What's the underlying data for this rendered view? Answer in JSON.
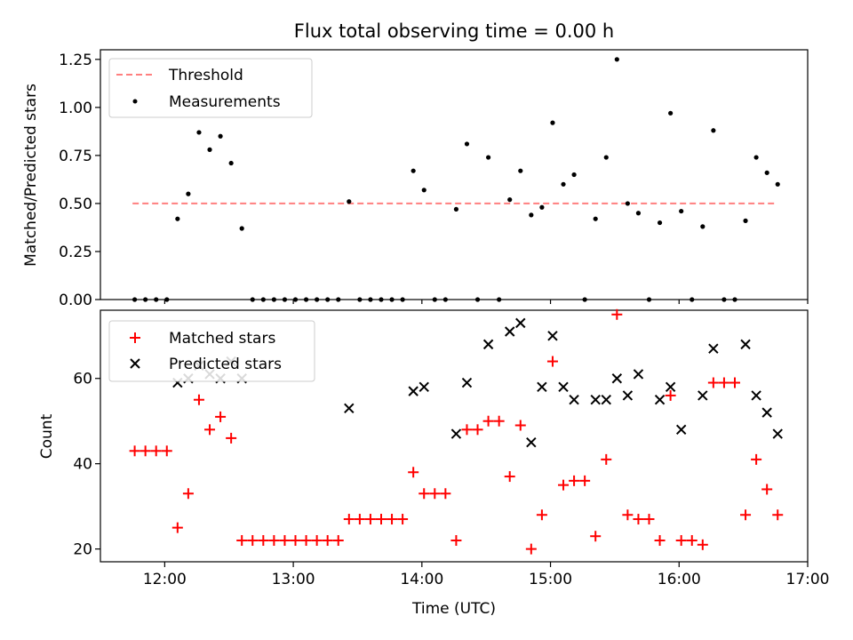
{
  "figure": {
    "title": "Flux total observing time = 0.00 h"
  },
  "chart_data": [
    {
      "type": "scatter",
      "panel": "top",
      "ylabel": "Matched/Predicted stars",
      "xlabel": "",
      "ylim": [
        0,
        1.3
      ],
      "xlim": [
        "11:30",
        "17:00"
      ],
      "yticks": [
        0.0,
        0.25,
        0.5,
        0.75,
        1.0,
        1.25
      ],
      "ytick_labels": [
        "0.00",
        "0.25",
        "0.50",
        "0.75",
        "1.00",
        "1.25"
      ],
      "legend_location": "upper-left",
      "legend": [
        "Threshold",
        "Measurements"
      ],
      "threshold": {
        "name": "Threshold",
        "y": 0.5,
        "x_start": "11:45",
        "x_end": "16:45",
        "color": "#ff7f7f",
        "style": "dashed"
      },
      "series": [
        {
          "name": "Measurements",
          "color": "#000000",
          "x": [
            "11:46",
            "11:51",
            "11:56",
            "12:01",
            "12:06",
            "12:11",
            "12:16",
            "12:21",
            "12:26",
            "12:31",
            "12:36",
            "12:41",
            "12:46",
            "12:51",
            "12:56",
            "13:01",
            "13:06",
            "13:11",
            "13:16",
            "13:21",
            "13:26",
            "13:31",
            "13:36",
            "13:41",
            "13:46",
            "13:51",
            "13:56",
            "14:01",
            "14:06",
            "14:11",
            "14:16",
            "14:21",
            "14:26",
            "14:31",
            "14:36",
            "14:41",
            "14:46",
            "14:51",
            "14:56",
            "15:01",
            "15:06",
            "15:11",
            "15:16",
            "15:21",
            "15:26",
            "15:31",
            "15:36",
            "15:41",
            "15:46",
            "15:51",
            "15:56",
            "16:01",
            "16:06",
            "16:11",
            "16:16",
            "16:21",
            "16:26",
            "16:31",
            "16:36",
            "16:41",
            "16:46"
          ],
          "y": [
            0.0,
            0.0,
            0.0,
            0.0,
            0.42,
            0.55,
            0.87,
            0.78,
            0.85,
            0.71,
            0.37,
            0.0,
            0.0,
            0.0,
            0.0,
            0.0,
            0.0,
            0.0,
            0.0,
            0.0,
            0.51,
            0.0,
            0.0,
            0.0,
            0.0,
            0.0,
            0.67,
            0.57,
            0.0,
            0.0,
            0.47,
            0.81,
            0.0,
            0.74,
            0.0,
            0.52,
            0.67,
            0.44,
            0.48,
            0.92,
            0.6,
            0.65,
            0.0,
            0.42,
            0.74,
            1.25,
            0.5,
            0.45,
            0.0,
            0.4,
            0.97,
            0.46,
            0.0,
            0.38,
            0.88,
            0.0,
            0.0,
            0.41,
            0.74,
            0.66,
            0.6
          ]
        }
      ]
    },
    {
      "type": "scatter",
      "panel": "bottom",
      "ylabel": "Count",
      "xlabel": "Time (UTC)",
      "ylim": [
        17,
        76
      ],
      "xlim": [
        "11:30",
        "17:00"
      ],
      "yticks": [
        20,
        40,
        60
      ],
      "ytick_labels": [
        "20",
        "40",
        "60"
      ],
      "xtick_labels": [
        "12:00",
        "13:00",
        "14:00",
        "15:00",
        "16:00",
        "17:00"
      ],
      "legend_location": "upper-left",
      "legend": [
        "Matched stars",
        "Predicted stars"
      ],
      "series": [
        {
          "name": "Matched stars",
          "marker": "plus",
          "color": "#ff0000",
          "x": [
            "11:46",
            "11:51",
            "11:56",
            "12:01",
            "12:06",
            "12:11",
            "12:16",
            "12:21",
            "12:26",
            "12:31",
            "12:36",
            "12:41",
            "12:46",
            "12:51",
            "12:56",
            "13:01",
            "13:06",
            "13:11",
            "13:16",
            "13:21",
            "13:26",
            "13:31",
            "13:36",
            "13:41",
            "13:46",
            "13:51",
            "13:56",
            "14:01",
            "14:06",
            "14:11",
            "14:16",
            "14:21",
            "14:26",
            "14:31",
            "14:36",
            "14:41",
            "14:46",
            "14:51",
            "14:56",
            "15:01",
            "15:06",
            "15:11",
            "15:16",
            "15:21",
            "15:26",
            "15:31",
            "15:36",
            "15:41",
            "15:46",
            "15:51",
            "15:56",
            "16:01",
            "16:06",
            "16:11",
            "16:16",
            "16:21",
            "16:26",
            "16:31",
            "16:36",
            "16:41",
            "16:46"
          ],
          "y": [
            43,
            43,
            43,
            43,
            25,
            33,
            55,
            48,
            51,
            46,
            22,
            22,
            22,
            22,
            22,
            22,
            22,
            22,
            22,
            22,
            27,
            27,
            27,
            27,
            27,
            27,
            38,
            33,
            33,
            33,
            22,
            48,
            48,
            50,
            50,
            37,
            49,
            20,
            28,
            64,
            35,
            36,
            36,
            23,
            41,
            75,
            28,
            27,
            27,
            22,
            56,
            22,
            22,
            21,
            59,
            59,
            59,
            28,
            41,
            34,
            28
          ]
        },
        {
          "name": "Predicted stars",
          "marker": "x",
          "color": "#000000",
          "x": [
            "12:06",
            "12:11",
            "12:16",
            "12:21",
            "12:26",
            "12:31",
            "12:36",
            "13:26",
            "13:56",
            "14:01",
            "14:16",
            "14:21",
            "14:31",
            "14:41",
            "14:46",
            "14:51",
            "14:56",
            "15:01",
            "15:06",
            "15:11",
            "15:21",
            "15:26",
            "15:31",
            "15:36",
            "15:41",
            "15:51",
            "15:56",
            "16:01",
            "16:11",
            "16:16",
            "16:31",
            "16:36",
            "16:41",
            "16:46"
          ],
          "y": [
            59,
            60,
            63,
            61,
            60,
            64,
            60,
            53,
            57,
            58,
            47,
            59,
            68,
            71,
            73,
            45,
            58,
            70,
            58,
            55,
            55,
            55,
            60,
            56,
            61,
            55,
            58,
            48,
            56,
            67,
            68,
            56,
            52,
            47
          ]
        }
      ]
    }
  ]
}
